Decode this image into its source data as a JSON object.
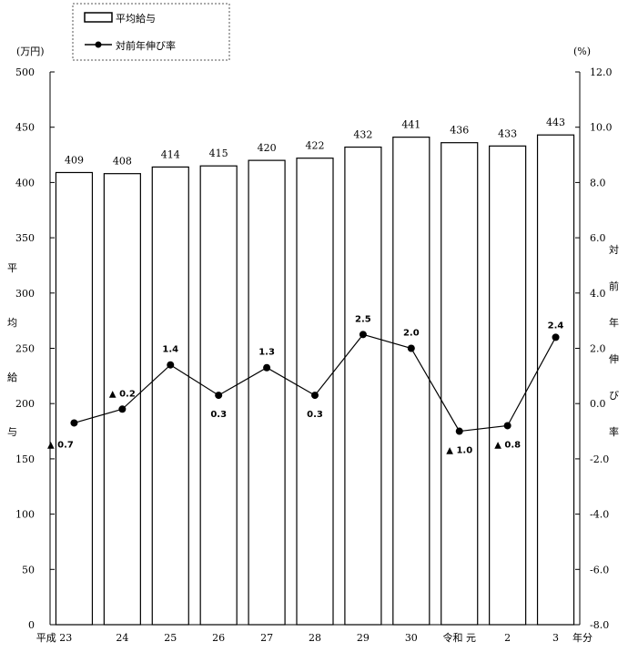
{
  "chart_data": {
    "type": "bar+line",
    "categories": [
      "平成 23",
      "24",
      "25",
      "26",
      "27",
      "28",
      "29",
      "30",
      "令和 元",
      "2",
      "3"
    ],
    "x_suffix": "年分",
    "series": [
      {
        "name": "平均給与",
        "type": "bar",
        "axis": "left",
        "values": [
          409,
          408,
          414,
          415,
          420,
          422,
          432,
          441,
          436,
          433,
          443
        ]
      },
      {
        "name": "対前年伸び率",
        "type": "line",
        "axis": "right",
        "values": [
          -0.7,
          -0.2,
          1.4,
          0.3,
          1.3,
          0.3,
          2.5,
          2.0,
          -1.0,
          -0.8,
          2.4
        ],
        "labels": [
          "▲ 0.7",
          "▲ 0.2",
          "1.4",
          "0.3",
          "1.3",
          "0.3",
          "2.5",
          "2.0",
          "▲ 1.0",
          "▲ 0.8",
          "2.4"
        ]
      }
    ],
    "ylabel_left": "平均給与",
    "yunit_left": "(万円)",
    "ylim_left": [
      0,
      500
    ],
    "yticks_left": [
      "0",
      "50",
      "100",
      "150",
      "200",
      "250",
      "300",
      "350",
      "400",
      "450",
      "500"
    ],
    "ylabel_right": "対前年伸び率",
    "yunit_right": "(%)",
    "ylim_right": [
      -8,
      12
    ],
    "yticks_right": [
      "-8.0",
      "-6.0",
      "-4.0",
      "-2.0",
      "0.0",
      "2.0",
      "4.0",
      "6.0",
      "8.0",
      "10.0",
      "12.0"
    ],
    "legend": [
      "平均給与",
      "対前年伸び率"
    ],
    "legend_position": "top-left",
    "grid": false
  }
}
